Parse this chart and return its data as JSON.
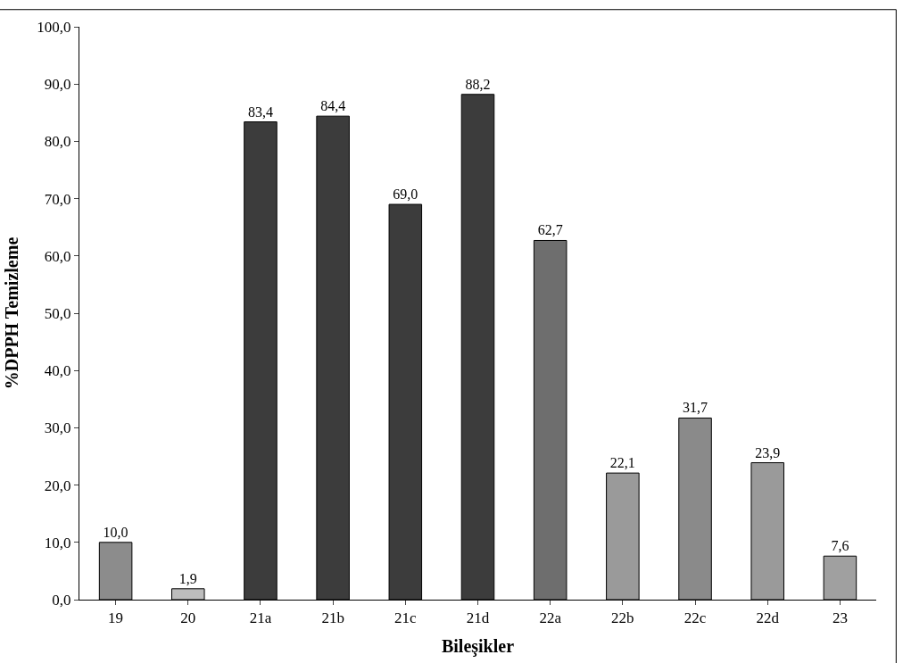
{
  "chart_data": {
    "type": "bar",
    "xlabel": "Bileşikler",
    "ylabel": "%DPPH Temizleme",
    "categories": [
      "19",
      "20",
      "21a",
      "21b",
      "21c",
      "21d",
      "22a",
      "22b",
      "22c",
      "22d",
      "23"
    ],
    "values": [
      10.0,
      1.9,
      83.4,
      84.4,
      69.0,
      88.2,
      62.7,
      22.1,
      31.7,
      23.9,
      7.6
    ],
    "value_labels": [
      "10,0",
      "1,9",
      "83,4",
      "84,4",
      "69,0",
      "88,2",
      "62,7",
      "22,1",
      "31,7",
      "23,9",
      "7,6"
    ],
    "colors": [
      "#8c8c8c",
      "#bdbdbd",
      "#3c3c3c",
      "#3c3c3c",
      "#3c3c3c",
      "#3c3c3c",
      "#6e6e6e",
      "#9a9a9a",
      "#8a8a8a",
      "#9a9a9a",
      "#a0a0a0"
    ],
    "ylim": [
      0,
      100
    ],
    "yticks": [
      {
        "value": 0,
        "label": "0,0"
      },
      {
        "value": 10,
        "label": "10,0"
      },
      {
        "value": 20,
        "label": "20,0"
      },
      {
        "value": 30,
        "label": "30,0"
      },
      {
        "value": 40,
        "label": "40,0"
      },
      {
        "value": 50,
        "label": "50,0"
      },
      {
        "value": 60,
        "label": "60,0"
      },
      {
        "value": 70,
        "label": "70,0"
      },
      {
        "value": 80,
        "label": "80,0"
      },
      {
        "value": 90,
        "label": "90,0"
      },
      {
        "value": 100,
        "label": "100,0"
      }
    ],
    "legend": false
  }
}
